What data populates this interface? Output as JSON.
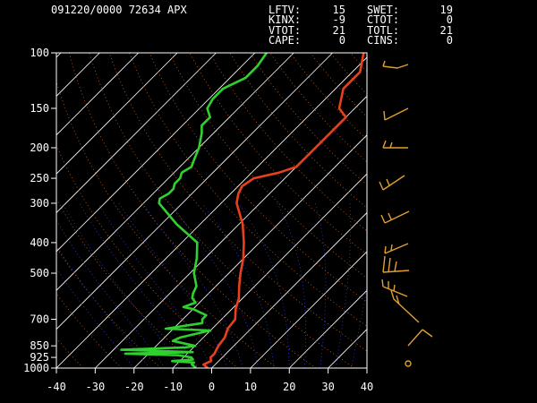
{
  "header": {
    "station_line": "091220/0000 72634  APX",
    "indices": [
      {
        "label": "LFTV:",
        "value": "15",
        "label2": "SWET:",
        "value2": "19"
      },
      {
        "label": "KINX:",
        "value": "-9",
        "label2": "CTOT:",
        "value2": "0"
      },
      {
        "label": "VTOT:",
        "value": "21",
        "label2": "TOTL:",
        "value2": "21"
      },
      {
        "label": "CAPE:",
        "value": "0",
        "label2": "CINS:",
        "value2": "0"
      }
    ]
  },
  "colors": {
    "temperature": "#e8401c",
    "dewpoint": "#2fd12f",
    "isotherm": "#ffffff",
    "dry_adiabat": "#c8601c",
    "moist_adiabat": "#3a3ac8",
    "wind_barb": "#e0a030",
    "frame": "#ffffff"
  },
  "chart_data": {
    "type": "line",
    "chart_kind": "skew-T log-P sounding",
    "x_axis": {
      "range": [
        -40,
        40
      ],
      "ticks": [
        -40,
        -30,
        -20,
        -10,
        0,
        10,
        20,
        30,
        40
      ],
      "unit": "degC"
    },
    "y_axis": {
      "scale": "log",
      "range": [
        1000,
        100
      ],
      "ticks": [
        100,
        150,
        200,
        250,
        300,
        400,
        500,
        700,
        850,
        925,
        1000
      ],
      "unit": "hPa"
    },
    "series": [
      {
        "key": "temperature",
        "points": [
          [
            1000,
            -1
          ],
          [
            975,
            -3
          ],
          [
            950,
            -2
          ],
          [
            925,
            -3
          ],
          [
            900,
            -3
          ],
          [
            875,
            -3.5
          ],
          [
            850,
            -4
          ],
          [
            800,
            -4.5
          ],
          [
            750,
            -6
          ],
          [
            700,
            -6.5
          ],
          [
            650,
            -9
          ],
          [
            600,
            -11
          ],
          [
            550,
            -14
          ],
          [
            500,
            -17
          ],
          [
            450,
            -20
          ],
          [
            400,
            -24
          ],
          [
            350,
            -29
          ],
          [
            300,
            -36
          ],
          [
            280,
            -38
          ],
          [
            265,
            -39
          ],
          [
            250,
            -38
          ],
          [
            240,
            -33
          ],
          [
            230,
            -30
          ],
          [
            220,
            -30
          ],
          [
            200,
            -30
          ],
          [
            180,
            -30
          ],
          [
            160,
            -30
          ],
          [
            150,
            -34
          ],
          [
            130,
            -38
          ],
          [
            115,
            -38
          ],
          [
            100,
            -42
          ]
        ]
      },
      {
        "key": "dewpoint",
        "points": [
          [
            1000,
            -4
          ],
          [
            975,
            -6
          ],
          [
            960,
            -6
          ],
          [
            950,
            -12
          ],
          [
            940,
            -7
          ],
          [
            925,
            -8
          ],
          [
            910,
            -12
          ],
          [
            900,
            -26
          ],
          [
            890,
            -9
          ],
          [
            875,
            -28
          ],
          [
            860,
            -12
          ],
          [
            850,
            -10
          ],
          [
            820,
            -17
          ],
          [
            800,
            -16
          ],
          [
            760,
            -10
          ],
          [
            750,
            -22
          ],
          [
            720,
            -14
          ],
          [
            700,
            -15
          ],
          [
            680,
            -15
          ],
          [
            650,
            -20
          ],
          [
            640,
            -23
          ],
          [
            620,
            -21
          ],
          [
            600,
            -23
          ],
          [
            580,
            -24
          ],
          [
            550,
            -25
          ],
          [
            500,
            -29
          ],
          [
            450,
            -32
          ],
          [
            400,
            -36
          ],
          [
            350,
            -46
          ],
          [
            300,
            -56
          ],
          [
            290,
            -57
          ],
          [
            280,
            -56
          ],
          [
            270,
            -56
          ],
          [
            260,
            -57
          ],
          [
            250,
            -57
          ],
          [
            240,
            -58
          ],
          [
            230,
            -57
          ],
          [
            220,
            -58
          ],
          [
            200,
            -60
          ],
          [
            180,
            -63
          ],
          [
            170,
            -65
          ],
          [
            160,
            -65
          ],
          [
            150,
            -68
          ],
          [
            140,
            -69
          ],
          [
            130,
            -69
          ],
          [
            120,
            -66
          ],
          [
            110,
            -66
          ],
          [
            100,
            -67
          ]
        ]
      }
    ],
    "wind_barbs_shown": true
  }
}
